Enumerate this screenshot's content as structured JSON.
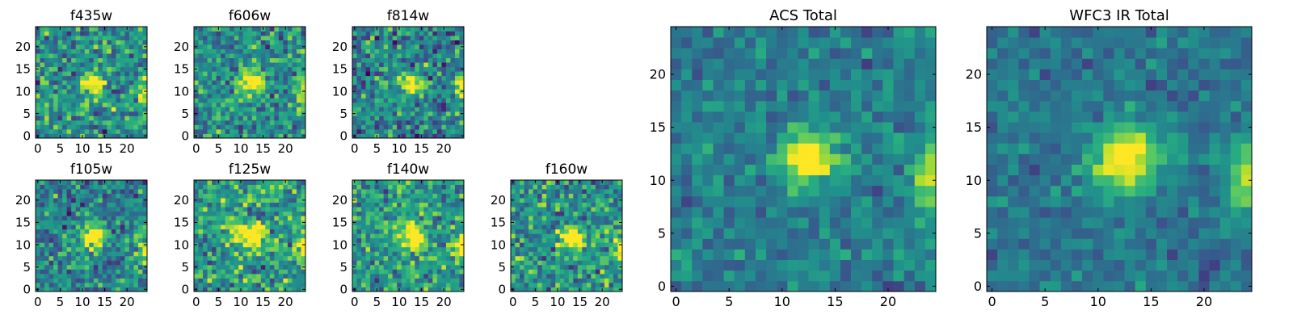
{
  "figure": {
    "colormap": "viridis",
    "colors": {
      "low": "#440154",
      "mid": "#21918c",
      "high": "#fde725",
      "frame": "#000000",
      "background": "#ffffff"
    }
  },
  "chart_data": [
    {
      "type": "heatmap",
      "title": "f435w",
      "grid_size": 25,
      "xticks": [
        0,
        5,
        10,
        15,
        20
      ],
      "yticks": [
        0,
        5,
        10,
        15,
        20
      ],
      "xlim": [
        0,
        25
      ],
      "ylim": [
        0,
        25
      ],
      "source_center": [
        12.5,
        12
      ],
      "source_radius": 1.6,
      "noise": 0.34,
      "baseline": 0.5,
      "right_edge_source": [
        24,
        9
      ],
      "seed": 11
    },
    {
      "type": "heatmap",
      "title": "f606w",
      "grid_size": 25,
      "xticks": [
        0,
        5,
        10,
        15,
        20
      ],
      "yticks": [
        0,
        5,
        10,
        15,
        20
      ],
      "xlim": [
        0,
        25
      ],
      "ylim": [
        0,
        25
      ],
      "source_center": [
        12.5,
        12
      ],
      "source_radius": 1.8,
      "noise": 0.3,
      "baseline": 0.5,
      "right_edge_source": [
        24,
        10
      ],
      "seed": 22
    },
    {
      "type": "heatmap",
      "title": "f814w",
      "grid_size": 25,
      "xticks": [
        0,
        5,
        10,
        15,
        20
      ],
      "yticks": [
        0,
        5,
        10,
        15,
        20
      ],
      "xlim": [
        0,
        25
      ],
      "ylim": [
        0,
        25
      ],
      "source_center": [
        12.5,
        12
      ],
      "source_radius": 1.7,
      "noise": 0.34,
      "baseline": 0.45,
      "right_edge_source": [
        24,
        11
      ],
      "seed": 33
    },
    {
      "type": "heatmap",
      "title": "f105w",
      "grid_size": 25,
      "xticks": [
        0,
        5,
        10,
        15,
        20
      ],
      "yticks": [
        0,
        5,
        10,
        15,
        20
      ],
      "xlim": [
        0,
        25
      ],
      "ylim": [
        0,
        25
      ],
      "source_center": [
        12.5,
        12
      ],
      "source_radius": 1.9,
      "noise": 0.3,
      "baseline": 0.45,
      "right_edge_source": [
        24,
        9
      ],
      "seed": 44
    },
    {
      "type": "heatmap",
      "title": "f125w",
      "grid_size": 25,
      "xticks": [
        0,
        5,
        10,
        15,
        20
      ],
      "yticks": [
        0,
        5,
        10,
        15,
        20
      ],
      "xlim": [
        0,
        25
      ],
      "ylim": [
        0,
        25
      ],
      "source_center": [
        12.5,
        12
      ],
      "source_radius": 2.0,
      "noise": 0.34,
      "baseline": 0.55,
      "right_edge_source": [
        24,
        10
      ],
      "seed": 55
    },
    {
      "type": "heatmap",
      "title": "f140w",
      "grid_size": 25,
      "xticks": [
        0,
        5,
        10,
        15,
        20
      ],
      "yticks": [
        0,
        5,
        10,
        15,
        20
      ],
      "xlim": [
        0,
        25
      ],
      "ylim": [
        0,
        25
      ],
      "source_center": [
        13,
        12
      ],
      "source_radius": 2.0,
      "noise": 0.3,
      "baseline": 0.55,
      "right_edge_source": [
        24,
        9
      ],
      "seed": 66
    },
    {
      "type": "heatmap",
      "title": "f160w",
      "grid_size": 25,
      "xticks": [
        0,
        5,
        10,
        15,
        20
      ],
      "yticks": [
        0,
        5,
        10,
        15,
        20
      ],
      "xlim": [
        0,
        25
      ],
      "ylim": [
        0,
        25
      ],
      "source_center": [
        13,
        12
      ],
      "source_radius": 1.9,
      "noise": 0.34,
      "baseline": 0.5,
      "right_edge_source": [
        24,
        9
      ],
      "seed": 77
    },
    {
      "type": "heatmap",
      "title": "ACS Total",
      "grid_size": 25,
      "xticks": [
        0,
        5,
        10,
        15,
        20
      ],
      "yticks": [
        0,
        5,
        10,
        15,
        20
      ],
      "xlim": [
        0,
        25
      ],
      "ylim": [
        0,
        25
      ],
      "source_center": [
        12.5,
        12
      ],
      "source_radius": 1.8,
      "noise": 0.18,
      "baseline": 0.42,
      "right_edge_source": [
        24,
        10
      ],
      "seed": 88
    },
    {
      "type": "heatmap",
      "title": "WFC3 IR Total",
      "grid_size": 25,
      "xticks": [
        0,
        5,
        10,
        15,
        20
      ],
      "yticks": [
        0,
        5,
        10,
        15,
        20
      ],
      "xlim": [
        0,
        25
      ],
      "ylim": [
        0,
        25
      ],
      "source_center": [
        12.5,
        12
      ],
      "source_radius": 2.1,
      "noise": 0.16,
      "baseline": 0.4,
      "right_edge_source": [
        24,
        10
      ],
      "seed": 99
    }
  ]
}
